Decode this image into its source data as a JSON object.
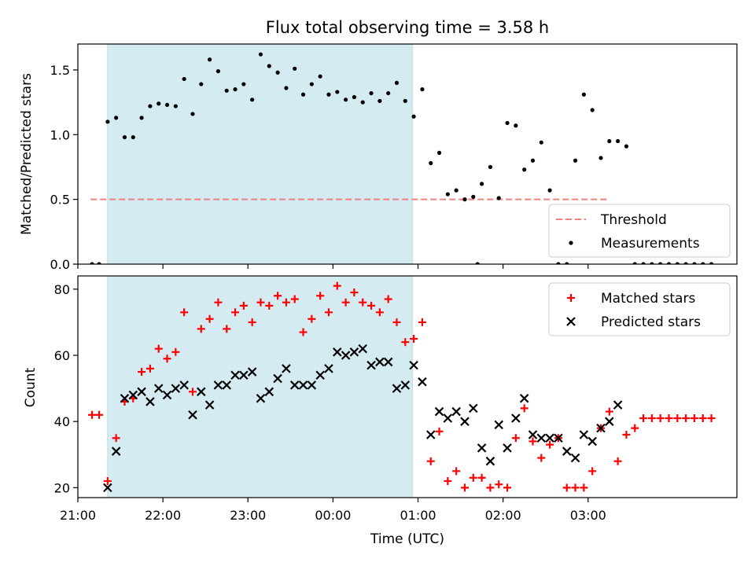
{
  "chart_data": [
    {
      "type": "scatter",
      "title": "Flux total observing time = 3.58 h",
      "xlabel": "",
      "ylabel": "Matched/Predicted stars",
      "ylim": [
        0,
        1.7
      ],
      "yticks": [
        0.0,
        0.5,
        1.0,
        1.5
      ],
      "ytick_labels": [
        "0.0",
        "0.5",
        "1.0",
        "1.5"
      ],
      "shaded_span": [
        "21:21",
        "00:56"
      ],
      "shade_color": "#d4ebf1",
      "threshold": {
        "name": "Threshold",
        "value": 0.5,
        "x_range": [
          "21:09",
          "03:15"
        ],
        "color": "#f08080"
      },
      "legend": {
        "placement": "lower-right",
        "entries": [
          "Threshold",
          "Measurements"
        ]
      },
      "series": [
        {
          "name": "Measurements",
          "color": "#000000",
          "points": [
            [
              "21:10",
              0.0
            ],
            [
              "21:15",
              0.0
            ],
            [
              "21:21",
              1.1
            ],
            [
              "21:27",
              1.13
            ],
            [
              "21:33",
              0.98
            ],
            [
              "21:39",
              0.98
            ],
            [
              "21:45",
              1.13
            ],
            [
              "21:51",
              1.22
            ],
            [
              "21:57",
              1.24
            ],
            [
              "22:03",
              1.23
            ],
            [
              "22:09",
              1.22
            ],
            [
              "22:15",
              1.43
            ],
            [
              "22:21",
              1.16
            ],
            [
              "22:27",
              1.39
            ],
            [
              "22:33",
              1.58
            ],
            [
              "22:39",
              1.49
            ],
            [
              "22:45",
              1.34
            ],
            [
              "22:51",
              1.35
            ],
            [
              "22:57",
              1.39
            ],
            [
              "23:03",
              1.27
            ],
            [
              "23:09",
              1.62
            ],
            [
              "23:15",
              1.53
            ],
            [
              "23:21",
              1.48
            ],
            [
              "23:27",
              1.36
            ],
            [
              "23:33",
              1.51
            ],
            [
              "23:39",
              1.31
            ],
            [
              "23:45",
              1.39
            ],
            [
              "23:51",
              1.45
            ],
            [
              "23:57",
              1.31
            ],
            [
              "00:03",
              1.33
            ],
            [
              "00:09",
              1.27
            ],
            [
              "00:15",
              1.29
            ],
            [
              "00:21",
              1.25
            ],
            [
              "00:27",
              1.32
            ],
            [
              "00:33",
              1.26
            ],
            [
              "00:39",
              1.32
            ],
            [
              "00:45",
              1.4
            ],
            [
              "00:51",
              1.26
            ],
            [
              "00:57",
              1.14
            ],
            [
              "01:03",
              1.35
            ],
            [
              "01:09",
              0.78
            ],
            [
              "01:15",
              0.86
            ],
            [
              "01:21",
              0.54
            ],
            [
              "01:27",
              0.57
            ],
            [
              "01:33",
              0.5
            ],
            [
              "01:39",
              0.52
            ],
            [
              "01:42",
              0.0
            ],
            [
              "01:45",
              0.62
            ],
            [
              "01:51",
              0.75
            ],
            [
              "01:57",
              0.51
            ],
            [
              "02:03",
              1.09
            ],
            [
              "02:09",
              1.07
            ],
            [
              "02:15",
              0.73
            ],
            [
              "02:21",
              0.8
            ],
            [
              "02:27",
              0.94
            ],
            [
              "02:33",
              0.57
            ],
            [
              "02:39",
              0.0
            ],
            [
              "02:45",
              0.0
            ],
            [
              "02:51",
              0.8
            ],
            [
              "02:57",
              1.31
            ],
            [
              "03:03",
              1.19
            ],
            [
              "03:09",
              0.82
            ],
            [
              "03:15",
              0.95
            ],
            [
              "03:21",
              0.95
            ],
            [
              "03:27",
              0.91
            ],
            [
              "03:33",
              0.0
            ],
            [
              "03:39",
              0.0
            ],
            [
              "03:45",
              0.0
            ],
            [
              "03:51",
              0.0
            ],
            [
              "03:57",
              0.0
            ],
            [
              "04:03",
              0.0
            ],
            [
              "04:09",
              0.0
            ],
            [
              "04:15",
              0.0
            ],
            [
              "04:21",
              0.0
            ],
            [
              "04:27",
              0.0
            ]
          ]
        }
      ]
    },
    {
      "type": "scatter",
      "title": "",
      "xlabel": "Time (UTC)",
      "ylabel": "Count",
      "ylim": [
        17,
        84
      ],
      "yticks": [
        20,
        40,
        60,
        80
      ],
      "ytick_labels": [
        "20",
        "40",
        "60",
        "80"
      ],
      "xlim": [
        "21:00",
        "04:45"
      ],
      "xticks": [
        "21:00",
        "22:00",
        "23:00",
        "00:00",
        "01:00",
        "02:00",
        "03:00"
      ],
      "xtick_labels": [
        "21:00",
        "22:00",
        "23:00",
        "00:00",
        "01:00",
        "02:00",
        "03:00"
      ],
      "shaded_span": [
        "21:21",
        "00:56"
      ],
      "shade_color": "#d4ebf1",
      "legend": {
        "placement": "upper-right",
        "entries": [
          "Matched stars",
          "Predicted stars"
        ]
      },
      "series": [
        {
          "name": "Matched stars",
          "marker": "plus",
          "color": "#ff0000",
          "points": [
            [
              "21:10",
              42
            ],
            [
              "21:15",
              42
            ],
            [
              "21:21",
              22
            ],
            [
              "21:27",
              35
            ],
            [
              "21:33",
              46
            ],
            [
              "21:39",
              47
            ],
            [
              "21:45",
              55
            ],
            [
              "21:51",
              56
            ],
            [
              "21:57",
              62
            ],
            [
              "22:03",
              59
            ],
            [
              "22:09",
              61
            ],
            [
              "22:15",
              73
            ],
            [
              "22:21",
              49
            ],
            [
              "22:27",
              68
            ],
            [
              "22:33",
              71
            ],
            [
              "22:39",
              76
            ],
            [
              "22:45",
              68
            ],
            [
              "22:51",
              73
            ],
            [
              "22:57",
              75
            ],
            [
              "23:03",
              70
            ],
            [
              "23:09",
              76
            ],
            [
              "23:15",
              75
            ],
            [
              "23:21",
              78
            ],
            [
              "23:27",
              76
            ],
            [
              "23:33",
              77
            ],
            [
              "23:39",
              67
            ],
            [
              "23:45",
              71
            ],
            [
              "23:51",
              78
            ],
            [
              "23:57",
              73
            ],
            [
              "00:03",
              81
            ],
            [
              "00:09",
              76
            ],
            [
              "00:15",
              79
            ],
            [
              "00:21",
              76
            ],
            [
              "00:27",
              75
            ],
            [
              "00:33",
              73
            ],
            [
              "00:39",
              77
            ],
            [
              "00:45",
              70
            ],
            [
              "00:51",
              64
            ],
            [
              "00:57",
              65
            ],
            [
              "01:03",
              70
            ],
            [
              "01:09",
              28
            ],
            [
              "01:15",
              37
            ],
            [
              "01:21",
              22
            ],
            [
              "01:27",
              25
            ],
            [
              "01:33",
              20
            ],
            [
              "01:39",
              23
            ],
            [
              "01:45",
              23
            ],
            [
              "01:51",
              20
            ],
            [
              "01:57",
              21
            ],
            [
              "02:03",
              20
            ],
            [
              "02:09",
              35
            ],
            [
              "02:15",
              44
            ],
            [
              "02:21",
              34
            ],
            [
              "02:27",
              29
            ],
            [
              "02:33",
              33
            ],
            [
              "02:39",
              35
            ],
            [
              "02:45",
              20
            ],
            [
              "02:51",
              20
            ],
            [
              "02:57",
              20
            ],
            [
              "03:03",
              25
            ],
            [
              "03:09",
              38
            ],
            [
              "03:15",
              43
            ],
            [
              "03:21",
              28
            ],
            [
              "03:27",
              36
            ],
            [
              "03:33",
              38
            ],
            [
              "03:39",
              41
            ],
            [
              "03:45",
              41
            ],
            [
              "03:51",
              41
            ],
            [
              "03:57",
              41
            ],
            [
              "04:03",
              41
            ],
            [
              "04:09",
              41
            ],
            [
              "04:15",
              41
            ],
            [
              "04:21",
              41
            ],
            [
              "04:27",
              41
            ]
          ]
        },
        {
          "name": "Predicted stars",
          "marker": "x",
          "color": "#000000",
          "points": [
            [
              "21:21",
              20
            ],
            [
              "21:27",
              31
            ],
            [
              "21:33",
              47
            ],
            [
              "21:39",
              48
            ],
            [
              "21:45",
              49
            ],
            [
              "21:51",
              46
            ],
            [
              "21:57",
              50
            ],
            [
              "22:03",
              48
            ],
            [
              "22:09",
              50
            ],
            [
              "22:15",
              51
            ],
            [
              "22:21",
              42
            ],
            [
              "22:27",
              49
            ],
            [
              "22:33",
              45
            ],
            [
              "22:39",
              51
            ],
            [
              "22:45",
              51
            ],
            [
              "22:51",
              54
            ],
            [
              "22:57",
              54
            ],
            [
              "23:03",
              55
            ],
            [
              "23:09",
              47
            ],
            [
              "23:15",
              49
            ],
            [
              "23:21",
              53
            ],
            [
              "23:27",
              56
            ],
            [
              "23:33",
              51
            ],
            [
              "23:39",
              51
            ],
            [
              "23:45",
              51
            ],
            [
              "23:51",
              54
            ],
            [
              "23:57",
              56
            ],
            [
              "00:03",
              61
            ],
            [
              "00:09",
              60
            ],
            [
              "00:15",
              61
            ],
            [
              "00:21",
              62
            ],
            [
              "00:27",
              57
            ],
            [
              "00:33",
              58
            ],
            [
              "00:39",
              58
            ],
            [
              "00:45",
              50
            ],
            [
              "00:51",
              51
            ],
            [
              "00:57",
              57
            ],
            [
              "01:03",
              52
            ],
            [
              "01:09",
              36
            ],
            [
              "01:15",
              43
            ],
            [
              "01:21",
              41
            ],
            [
              "01:27",
              43
            ],
            [
              "01:33",
              40
            ],
            [
              "01:39",
              44
            ],
            [
              "01:45",
              32
            ],
            [
              "01:51",
              28
            ],
            [
              "01:57",
              39
            ],
            [
              "02:03",
              32
            ],
            [
              "02:09",
              41
            ],
            [
              "02:15",
              47
            ],
            [
              "02:21",
              36
            ],
            [
              "02:27",
              35
            ],
            [
              "02:33",
              35
            ],
            [
              "02:39",
              35
            ],
            [
              "02:45",
              31
            ],
            [
              "02:51",
              29
            ],
            [
              "02:57",
              36
            ],
            [
              "03:03",
              34
            ],
            [
              "03:09",
              38
            ],
            [
              "03:15",
              40
            ],
            [
              "03:21",
              45
            ]
          ]
        }
      ]
    }
  ]
}
